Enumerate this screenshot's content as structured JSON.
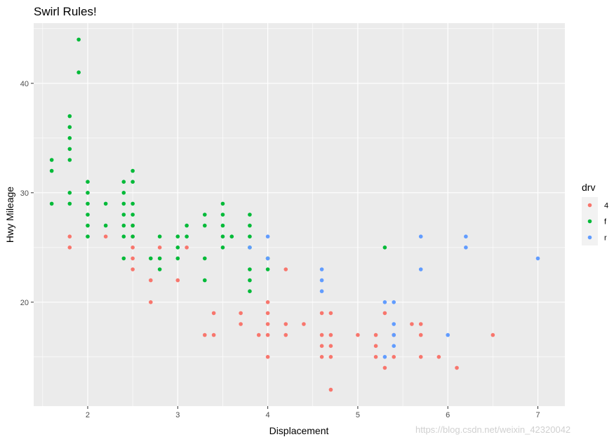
{
  "chart_data": {
    "type": "scatter",
    "title": "Swirl Rules!",
    "xlabel": "Displacement",
    "ylabel": "Hwy Mileage",
    "xlim": [
      1.4,
      7.3
    ],
    "ylim": [
      10.5,
      45.5
    ],
    "x_ticks": [
      2,
      3,
      4,
      5,
      6,
      7
    ],
    "y_ticks": [
      20,
      30,
      40
    ],
    "grid": true,
    "legend": {
      "title": "drv",
      "placement": "right",
      "entries": [
        {
          "label": "4",
          "color": "#F8766D"
        },
        {
          "label": "f",
          "color": "#00BA38"
        },
        {
          "label": "r",
          "color": "#619CFF"
        }
      ]
    },
    "series": [
      {
        "name": "4",
        "color": "#F8766D",
        "points": [
          [
            1.8,
            26
          ],
          [
            1.8,
            25
          ],
          [
            2.2,
            26
          ],
          [
            2.5,
            27
          ],
          [
            2.5,
            26
          ],
          [
            2.5,
            25
          ],
          [
            2.5,
            24
          ],
          [
            2.5,
            23
          ],
          [
            2.7,
            22
          ],
          [
            2.7,
            20
          ],
          [
            2.8,
            25
          ],
          [
            3.0,
            22
          ],
          [
            3.1,
            25
          ],
          [
            3.3,
            17
          ],
          [
            3.4,
            19
          ],
          [
            3.4,
            17
          ],
          [
            3.7,
            19
          ],
          [
            3.7,
            18
          ],
          [
            3.9,
            17
          ],
          [
            4.0,
            20
          ],
          [
            4.0,
            19
          ],
          [
            4.0,
            18
          ],
          [
            4.0,
            17
          ],
          [
            4.0,
            15
          ],
          [
            4.2,
            23
          ],
          [
            4.2,
            18
          ],
          [
            4.2,
            17
          ],
          [
            4.4,
            18
          ],
          [
            4.6,
            19
          ],
          [
            4.6,
            17
          ],
          [
            4.6,
            16
          ],
          [
            4.6,
            15
          ],
          [
            4.7,
            19
          ],
          [
            4.7,
            17
          ],
          [
            4.7,
            16
          ],
          [
            4.7,
            15
          ],
          [
            4.7,
            12
          ],
          [
            5.0,
            17
          ],
          [
            5.2,
            17
          ],
          [
            5.2,
            16
          ],
          [
            5.2,
            15
          ],
          [
            5.3,
            19
          ],
          [
            5.3,
            14
          ],
          [
            5.4,
            17
          ],
          [
            5.4,
            15
          ],
          [
            5.6,
            18
          ],
          [
            5.7,
            18
          ],
          [
            5.7,
            17
          ],
          [
            5.7,
            15
          ],
          [
            5.9,
            15
          ],
          [
            6.1,
            14
          ],
          [
            6.5,
            17
          ]
        ]
      },
      {
        "name": "f",
        "color": "#00BA38",
        "points": [
          [
            1.6,
            33
          ],
          [
            1.6,
            32
          ],
          [
            1.6,
            29
          ],
          [
            1.8,
            37
          ],
          [
            1.8,
            36
          ],
          [
            1.8,
            35
          ],
          [
            1.8,
            34
          ],
          [
            1.8,
            33
          ],
          [
            1.8,
            30
          ],
          [
            1.8,
            29
          ],
          [
            1.9,
            44
          ],
          [
            1.9,
            41
          ],
          [
            2.0,
            31
          ],
          [
            2.0,
            30
          ],
          [
            2.0,
            29
          ],
          [
            2.0,
            28
          ],
          [
            2.0,
            27
          ],
          [
            2.0,
            26
          ],
          [
            2.2,
            29
          ],
          [
            2.2,
            27
          ],
          [
            2.4,
            31
          ],
          [
            2.4,
            30
          ],
          [
            2.4,
            29
          ],
          [
            2.4,
            28
          ],
          [
            2.4,
            27
          ],
          [
            2.4,
            26
          ],
          [
            2.4,
            24
          ],
          [
            2.5,
            32
          ],
          [
            2.5,
            31
          ],
          [
            2.5,
            29
          ],
          [
            2.5,
            28
          ],
          [
            2.5,
            27
          ],
          [
            2.5,
            26
          ],
          [
            2.7,
            24
          ],
          [
            2.8,
            26
          ],
          [
            2.8,
            24
          ],
          [
            2.8,
            23
          ],
          [
            3.0,
            26
          ],
          [
            3.0,
            25
          ],
          [
            3.0,
            24
          ],
          [
            3.1,
            27
          ],
          [
            3.1,
            26
          ],
          [
            3.3,
            28
          ],
          [
            3.3,
            27
          ],
          [
            3.3,
            24
          ],
          [
            3.3,
            22
          ],
          [
            3.5,
            29
          ],
          [
            3.5,
            28
          ],
          [
            3.5,
            27
          ],
          [
            3.5,
            26
          ],
          [
            3.5,
            25
          ],
          [
            3.6,
            26
          ],
          [
            3.8,
            28
          ],
          [
            3.8,
            27
          ],
          [
            3.8,
            26
          ],
          [
            3.8,
            25
          ],
          [
            3.8,
            23
          ],
          [
            3.8,
            22
          ],
          [
            3.8,
            21
          ],
          [
            4.0,
            24
          ],
          [
            4.0,
            23
          ],
          [
            5.3,
            25
          ]
        ]
      },
      {
        "name": "r",
        "color": "#619CFF",
        "points": [
          [
            3.8,
            25
          ],
          [
            4.0,
            26
          ],
          [
            4.0,
            24
          ],
          [
            4.6,
            23
          ],
          [
            4.6,
            22
          ],
          [
            4.6,
            21
          ],
          [
            5.3,
            20
          ],
          [
            5.3,
            15
          ],
          [
            5.4,
            20
          ],
          [
            5.4,
            18
          ],
          [
            5.4,
            17
          ],
          [
            5.4,
            16
          ],
          [
            5.7,
            26
          ],
          [
            5.7,
            23
          ],
          [
            6.0,
            17
          ],
          [
            6.2,
            26
          ],
          [
            6.2,
            25
          ],
          [
            7.0,
            24
          ]
        ]
      }
    ]
  },
  "watermark": "https://blog.csdn.net/weixin_42320042"
}
